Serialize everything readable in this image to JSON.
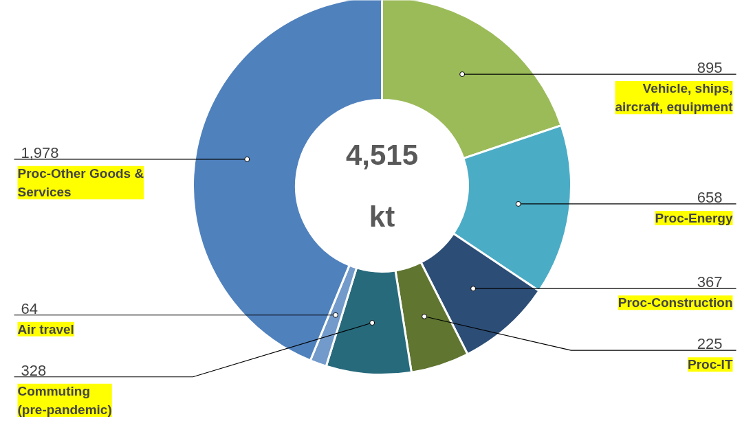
{
  "chart_data": {
    "type": "donut",
    "categories": [
      "Vehicle, ships, aircraft, equipment",
      "Proc-Energy",
      "Proc-Construction",
      "Proc-IT",
      "Commuting (pre-pandemic)",
      "Air travel",
      "Proc-Other Goods & Services"
    ],
    "values": [
      895,
      658,
      367,
      225,
      328,
      64,
      1978
    ],
    "colors": [
      "#9bbb59",
      "#4bacc6",
      "#2c4d75",
      "#5f7530",
      "#276a7c",
      "#729aca",
      "#4f81bd"
    ],
    "annotations": [
      "4,515",
      "kt"
    ],
    "value_labels": [
      "895",
      "658",
      "367",
      "225",
      "328",
      "64",
      "1,978"
    ]
  }
}
